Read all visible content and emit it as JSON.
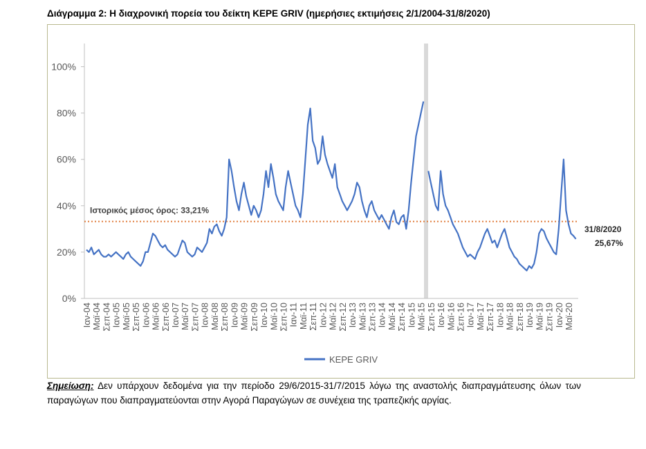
{
  "chart_data": {
    "type": "line",
    "title": "Διάγραμμα 2: Η διαχρονική πορεία του δείκτη KEPE GRIV (ημερήσιες εκτιμήσεις 2/1/2004-31/8/2020)",
    "categories": [
      "Ιαν-04",
      null,
      null,
      null,
      "Μαϊ-04",
      null,
      null,
      null,
      "Σεπ-04",
      null,
      null,
      null,
      "Ιαν-05",
      null,
      null,
      null,
      "Μαϊ-05",
      null,
      null,
      null,
      "Σεπ-05",
      null,
      null,
      null,
      "Ιαν-06",
      null,
      null,
      null,
      "Μαϊ-06",
      null,
      null,
      null,
      "Σεπ-06",
      null,
      null,
      null,
      "Ιαν-07",
      null,
      null,
      null,
      "Μαϊ-07",
      null,
      null,
      null,
      "Σεπ-07",
      null,
      null,
      null,
      "Ιαν-08",
      null,
      null,
      null,
      "Μαϊ-08",
      null,
      null,
      null,
      "Σεπ-08",
      null,
      null,
      null,
      "Ιαν-09",
      null,
      null,
      null,
      "Μαϊ-09",
      null,
      null,
      null,
      "Σεπ-09",
      null,
      null,
      null,
      "Ιαν-10",
      null,
      null,
      null,
      "Μαϊ-10",
      null,
      null,
      null,
      "Σεπ-10",
      null,
      null,
      null,
      "Ιαν-11",
      null,
      null,
      null,
      "Μαϊ-11",
      null,
      null,
      null,
      "Σεπ-11",
      null,
      null,
      null,
      "Ιαν-12",
      null,
      null,
      null,
      "Μαϊ-12",
      null,
      null,
      null,
      "Σεπ-12",
      null,
      null,
      null,
      "Ιαν-13",
      null,
      null,
      null,
      "Μαϊ-13",
      null,
      null,
      null,
      "Σεπ-13",
      null,
      null,
      null,
      "Ιαν-14",
      null,
      null,
      null,
      "Μαϊ-14",
      null,
      null,
      null,
      "Σεπ-14",
      null,
      null,
      null,
      "Ιαν-15",
      null,
      null,
      null,
      "Μαϊ-15",
      null,
      null,
      null,
      "Σεπ-15",
      null,
      null,
      null,
      "Ιαν-16",
      null,
      null,
      null,
      "Μαϊ-16",
      null,
      null,
      null,
      "Σεπ-16",
      null,
      null,
      null,
      "Ιαν-17",
      null,
      null,
      null,
      "Μαϊ-17",
      null,
      null,
      null,
      "Σεπ-17",
      null,
      null,
      null,
      "Ιαν-18",
      null,
      null,
      null,
      "Μαϊ-18",
      null,
      null,
      null,
      "Σεπ-18",
      null,
      null,
      null,
      "Ιαν-19",
      null,
      null,
      null,
      "Μαϊ-19",
      null,
      null,
      null,
      "Σεπ-19",
      null,
      null,
      null,
      "Ιαν-20",
      null,
      null,
      null,
      "Μαϊ-20",
      null,
      null,
      null
    ],
    "series": [
      {
        "name": "KEPE GRIV",
        "color": "#4472c4",
        "values": [
          21,
          20,
          22,
          19,
          20,
          21,
          19,
          18,
          18,
          19,
          18,
          19,
          20,
          19,
          18,
          17,
          19,
          20,
          18,
          17,
          16,
          15,
          14,
          16,
          20,
          20,
          24,
          28,
          27,
          25,
          23,
          22,
          23,
          21,
          20,
          19,
          18,
          19,
          22,
          25,
          24,
          20,
          19,
          18,
          19,
          22,
          21,
          20,
          22,
          24,
          30,
          28,
          31,
          32,
          29,
          27,
          30,
          35,
          60,
          55,
          48,
          42,
          38,
          45,
          50,
          44,
          40,
          36,
          40,
          38,
          35,
          38,
          45,
          55,
          48,
          58,
          52,
          45,
          42,
          40,
          38,
          48,
          55,
          50,
          45,
          40,
          38,
          35,
          45,
          60,
          75,
          82,
          68,
          65,
          58,
          60,
          70,
          62,
          58,
          55,
          52,
          58,
          48,
          45,
          42,
          40,
          38,
          40,
          42,
          45,
          50,
          48,
          42,
          38,
          35,
          40,
          42,
          38,
          36,
          34,
          36,
          34,
          32,
          30,
          35,
          38,
          33,
          32,
          35,
          36,
          30,
          38,
          50,
          60,
          70,
          75,
          80,
          85,
          null,
          55,
          50,
          45,
          40,
          38,
          55,
          45,
          40,
          38,
          35,
          32,
          30,
          28,
          25,
          22,
          20,
          18,
          19,
          18,
          17,
          20,
          22,
          25,
          28,
          30,
          27,
          24,
          25,
          22,
          25,
          28,
          30,
          26,
          22,
          20,
          18,
          17,
          15,
          14,
          13,
          12,
          14,
          13,
          15,
          20,
          28,
          30,
          29,
          26,
          24,
          22,
          20,
          19,
          30,
          45,
          60,
          38,
          32,
          28,
          27,
          25.67
        ]
      }
    ],
    "ylim": [
      0,
      110
    ],
    "yticks": [
      {
        "value": 0,
        "label": "0%"
      },
      {
        "value": 20,
        "label": "20%"
      },
      {
        "value": 40,
        "label": "40%"
      },
      {
        "value": 60,
        "label": "60%"
      },
      {
        "value": 80,
        "label": "80%"
      },
      {
        "value": 100,
        "label": "100%"
      }
    ],
    "reference_line": {
      "value": 33.21,
      "label": "Ιστορικός μέσος όρος: 33,21%",
      "color": "#e07b39"
    },
    "end_annotation": {
      "date": "31/8/2020",
      "value_label": "25,67%"
    },
    "note": {
      "label": "Σημείωση:",
      "text": "Δεν υπάρχουν δεδομένα για την περίοδο 29/6/2015-31/7/2015 λόγω της αναστολής διαπραγμάτευσης όλων των παραγώγων που διαπραγματεύονται στην Αγορά Παραγώγων σε συνέχεια της τραπεζικής αργίας."
    }
  }
}
